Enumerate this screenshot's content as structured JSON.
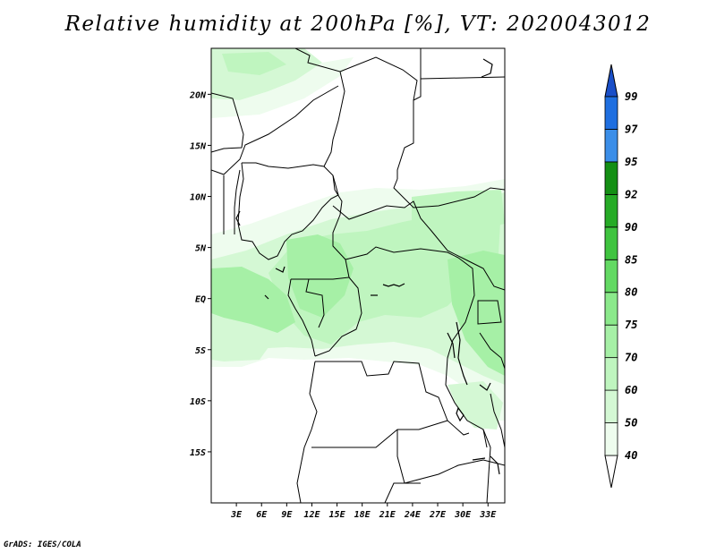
{
  "title": "Relative humidity at 200hPa [%], VT: 2020043012",
  "credit": "GrADS: IGES/COLA",
  "map": {
    "lat_labels": [
      "20N",
      "15N",
      "10N",
      "5N",
      "EQ",
      "5S",
      "10S",
      "15S"
    ],
    "lon_labels": [
      "3E",
      "6E",
      "9E",
      "12E",
      "15E",
      "18E",
      "21E",
      "24E",
      "27E",
      "30E",
      "33E"
    ],
    "lon_range": [
      0,
      35
    ],
    "lat_range": [
      -20,
      24.5
    ]
  },
  "colorbar": {
    "levels": [
      "40",
      "50",
      "60",
      "70",
      "75",
      "80",
      "85",
      "90",
      "92",
      "95",
      "97",
      "99"
    ],
    "colors": [
      "#eefcee",
      "#d4f8d4",
      "#bff5bf",
      "#a6f0a6",
      "#8be98b",
      "#63d963",
      "#3fc43f",
      "#26ab26",
      "#148f14",
      "#3b8ee8",
      "#1f6fe0",
      "#1a4fc8"
    ]
  }
}
